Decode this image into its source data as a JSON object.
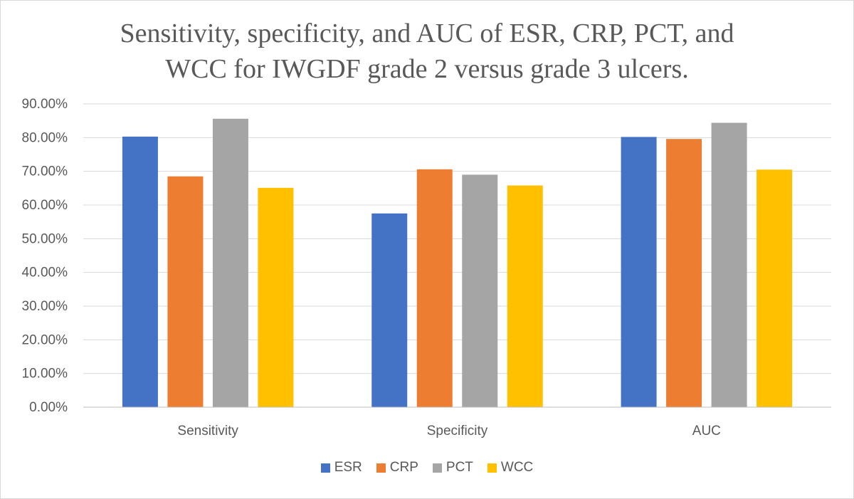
{
  "chart_data": {
    "type": "bar",
    "title_lines": [
      "Sensitivity, specificity, and AUC of ESR, CRP, PCT, and",
      "WCC for IWGDF grade 2 versus grade 3 ulcers."
    ],
    "categories": [
      "Sensitivity",
      "Specificity",
      "AUC"
    ],
    "series": [
      {
        "name": "ESR",
        "color": "#4472c4",
        "values": [
          80.3,
          57.5,
          80.2
        ]
      },
      {
        "name": "CRP",
        "color": "#ed7d31",
        "values": [
          68.5,
          70.6,
          79.6
        ]
      },
      {
        "name": "PCT",
        "color": "#a5a5a5",
        "values": [
          85.6,
          69.0,
          84.4
        ]
      },
      {
        "name": "WCC",
        "color": "#ffc000",
        "values": [
          65.1,
          65.8,
          70.5
        ]
      }
    ],
    "yticks": [
      "0.00%",
      "10.00%",
      "20.00%",
      "30.00%",
      "40.00%",
      "50.00%",
      "60.00%",
      "70.00%",
      "80.00%",
      "90.00%"
    ],
    "ylim": [
      0,
      90
    ],
    "grid": true,
    "legend_position": "bottom"
  }
}
